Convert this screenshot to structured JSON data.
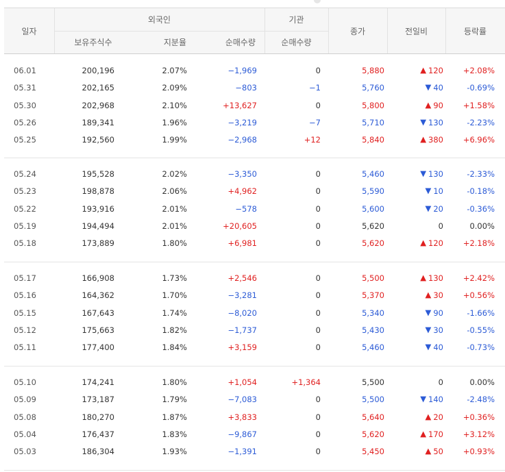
{
  "headers": {
    "date": "일자",
    "foreign_group": "외국인",
    "holdings": "보유주식수",
    "share_rate": "지분율",
    "foreign_net": "순매수량",
    "inst_group": "기관",
    "inst_net": "순매수량",
    "close": "종가",
    "change": "전일비",
    "pct": "등락률"
  },
  "colors": {
    "up": "#e02020",
    "down": "#2c5bd6",
    "neutral": "#333333"
  },
  "rows": [
    {
      "date": "06.01",
      "hold": "200,196",
      "rate": "2.07%",
      "fnet": "−1,969",
      "fnet_dir": "down",
      "inet": "0",
      "inet_dir": "none",
      "close": "5,880",
      "close_dir": "up",
      "chg": "120",
      "chg_dir": "up",
      "pct": "+2.08%",
      "pct_dir": "up"
    },
    {
      "date": "05.31",
      "hold": "202,165",
      "rate": "2.09%",
      "fnet": "−803",
      "fnet_dir": "down",
      "inet": "−1",
      "inet_dir": "down",
      "close": "5,760",
      "close_dir": "down",
      "chg": "40",
      "chg_dir": "down",
      "pct": "-0.69%",
      "pct_dir": "down"
    },
    {
      "date": "05.30",
      "hold": "202,968",
      "rate": "2.10%",
      "fnet": "+13,627",
      "fnet_dir": "up",
      "inet": "0",
      "inet_dir": "none",
      "close": "5,800",
      "close_dir": "up",
      "chg": "90",
      "chg_dir": "up",
      "pct": "+1.58%",
      "pct_dir": "up"
    },
    {
      "date": "05.26",
      "hold": "189,341",
      "rate": "1.96%",
      "fnet": "−3,219",
      "fnet_dir": "down",
      "inet": "−7",
      "inet_dir": "down",
      "close": "5,710",
      "close_dir": "down",
      "chg": "130",
      "chg_dir": "down",
      "pct": "-2.23%",
      "pct_dir": "down"
    },
    {
      "date": "05.25",
      "hold": "192,560",
      "rate": "1.99%",
      "fnet": "−2,968",
      "fnet_dir": "down",
      "inet": "+12",
      "inet_dir": "up",
      "close": "5,840",
      "close_dir": "up",
      "chg": "380",
      "chg_dir": "up",
      "pct": "+6.96%",
      "pct_dir": "up"
    },
    {
      "date": "05.24",
      "hold": "195,528",
      "rate": "2.02%",
      "fnet": "−3,350",
      "fnet_dir": "down",
      "inet": "0",
      "inet_dir": "none",
      "close": "5,460",
      "close_dir": "down",
      "chg": "130",
      "chg_dir": "down",
      "pct": "-2.33%",
      "pct_dir": "down"
    },
    {
      "date": "05.23",
      "hold": "198,878",
      "rate": "2.06%",
      "fnet": "+4,962",
      "fnet_dir": "up",
      "inet": "0",
      "inet_dir": "none",
      "close": "5,590",
      "close_dir": "down",
      "chg": "10",
      "chg_dir": "down",
      "pct": "-0.18%",
      "pct_dir": "down"
    },
    {
      "date": "05.22",
      "hold": "193,916",
      "rate": "2.01%",
      "fnet": "−578",
      "fnet_dir": "down",
      "inet": "0",
      "inet_dir": "none",
      "close": "5,600",
      "close_dir": "down",
      "chg": "20",
      "chg_dir": "down",
      "pct": "-0.36%",
      "pct_dir": "down"
    },
    {
      "date": "05.19",
      "hold": "194,494",
      "rate": "2.01%",
      "fnet": "+20,605",
      "fnet_dir": "up",
      "inet": "0",
      "inet_dir": "none",
      "close": "5,620",
      "close_dir": "none",
      "chg": "0",
      "chg_dir": "flat",
      "pct": "0.00%",
      "pct_dir": "none"
    },
    {
      "date": "05.18",
      "hold": "173,889",
      "rate": "1.80%",
      "fnet": "+6,981",
      "fnet_dir": "up",
      "inet": "0",
      "inet_dir": "none",
      "close": "5,620",
      "close_dir": "up",
      "chg": "120",
      "chg_dir": "up",
      "pct": "+2.18%",
      "pct_dir": "up"
    },
    {
      "date": "05.17",
      "hold": "166,908",
      "rate": "1.73%",
      "fnet": "+2,546",
      "fnet_dir": "up",
      "inet": "0",
      "inet_dir": "none",
      "close": "5,500",
      "close_dir": "up",
      "chg": "130",
      "chg_dir": "up",
      "pct": "+2.42%",
      "pct_dir": "up"
    },
    {
      "date": "05.16",
      "hold": "164,362",
      "rate": "1.70%",
      "fnet": "−3,281",
      "fnet_dir": "down",
      "inet": "0",
      "inet_dir": "none",
      "close": "5,370",
      "close_dir": "up",
      "chg": "30",
      "chg_dir": "up",
      "pct": "+0.56%",
      "pct_dir": "up"
    },
    {
      "date": "05.15",
      "hold": "167,643",
      "rate": "1.74%",
      "fnet": "−8,020",
      "fnet_dir": "down",
      "inet": "0",
      "inet_dir": "none",
      "close": "5,340",
      "close_dir": "down",
      "chg": "90",
      "chg_dir": "down",
      "pct": "-1.66%",
      "pct_dir": "down"
    },
    {
      "date": "05.12",
      "hold": "175,663",
      "rate": "1.82%",
      "fnet": "−1,737",
      "fnet_dir": "down",
      "inet": "0",
      "inet_dir": "none",
      "close": "5,430",
      "close_dir": "down",
      "chg": "30",
      "chg_dir": "down",
      "pct": "-0.55%",
      "pct_dir": "down"
    },
    {
      "date": "05.11",
      "hold": "177,400",
      "rate": "1.84%",
      "fnet": "+3,159",
      "fnet_dir": "up",
      "inet": "0",
      "inet_dir": "none",
      "close": "5,460",
      "close_dir": "down",
      "chg": "40",
      "chg_dir": "down",
      "pct": "-0.73%",
      "pct_dir": "down"
    },
    {
      "date": "05.10",
      "hold": "174,241",
      "rate": "1.80%",
      "fnet": "+1,054",
      "fnet_dir": "up",
      "inet": "+1,364",
      "inet_dir": "up",
      "close": "5,500",
      "close_dir": "none",
      "chg": "0",
      "chg_dir": "flat",
      "pct": "0.00%",
      "pct_dir": "none"
    },
    {
      "date": "05.09",
      "hold": "173,187",
      "rate": "1.79%",
      "fnet": "−7,083",
      "fnet_dir": "down",
      "inet": "0",
      "inet_dir": "none",
      "close": "5,500",
      "close_dir": "down",
      "chg": "140",
      "chg_dir": "down",
      "pct": "-2.48%",
      "pct_dir": "down"
    },
    {
      "date": "05.08",
      "hold": "180,270",
      "rate": "1.87%",
      "fnet": "+3,833",
      "fnet_dir": "up",
      "inet": "0",
      "inet_dir": "none",
      "close": "5,640",
      "close_dir": "up",
      "chg": "20",
      "chg_dir": "up",
      "pct": "+0.36%",
      "pct_dir": "up"
    },
    {
      "date": "05.04",
      "hold": "176,437",
      "rate": "1.83%",
      "fnet": "−9,867",
      "fnet_dir": "down",
      "inet": "0",
      "inet_dir": "none",
      "close": "5,620",
      "close_dir": "up",
      "chg": "170",
      "chg_dir": "up",
      "pct": "+3.12%",
      "pct_dir": "up"
    },
    {
      "date": "05.03",
      "hold": "186,304",
      "rate": "1.93%",
      "fnet": "−1,391",
      "fnet_dir": "down",
      "inet": "0",
      "inet_dir": "none",
      "close": "5,450",
      "close_dir": "up",
      "chg": "50",
      "chg_dir": "up",
      "pct": "+0.93%",
      "pct_dir": "up"
    }
  ]
}
